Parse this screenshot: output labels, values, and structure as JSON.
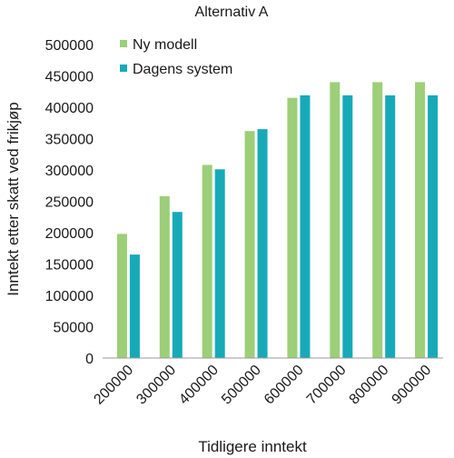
{
  "chart_data": {
    "type": "bar",
    "title": "Alternativ A",
    "xlabel": "Tidligere inntekt",
    "ylabel": "Inntekt etter skatt ved frikjøp",
    "categories": [
      "200000",
      "300000",
      "400000",
      "500000",
      "600000",
      "700000",
      "800000",
      "900000"
    ],
    "series": [
      {
        "name": "Ny modell",
        "color": "#9ccf78",
        "values": [
          198000,
          258000,
          308000,
          362000,
          415000,
          440000,
          440000,
          440000
        ]
      },
      {
        "name": "Dagens system",
        "color": "#16aab9",
        "values": [
          165000,
          233000,
          301000,
          365000,
          419000,
          419000,
          419000,
          419000
        ]
      }
    ],
    "ylim": [
      0,
      500000
    ],
    "yticks": [
      "0",
      "50000",
      "100000",
      "150000",
      "200000",
      "250000",
      "300000",
      "350000",
      "400000",
      "450000",
      "500000"
    ],
    "grid": false,
    "legend_position": "top-left"
  }
}
